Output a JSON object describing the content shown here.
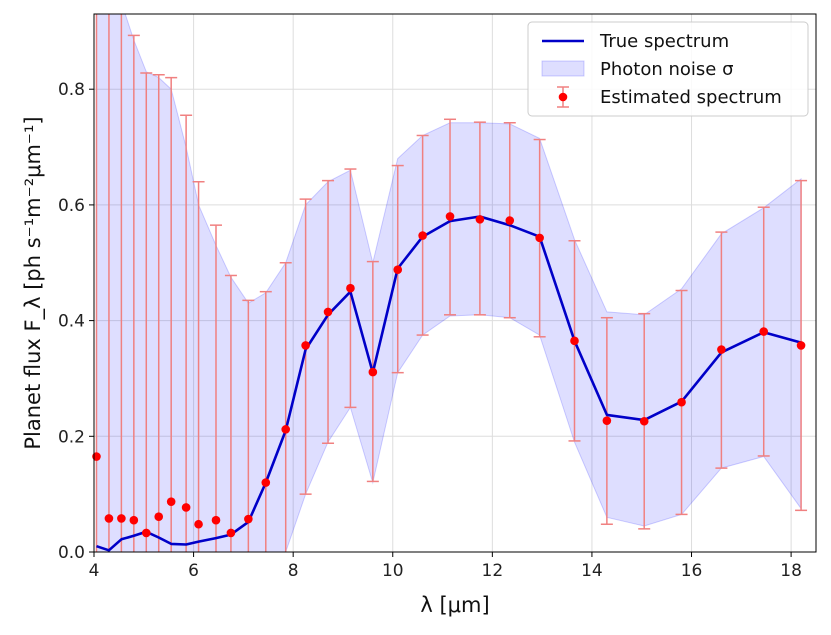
{
  "chart_data": {
    "type": "line",
    "title": "",
    "xlabel": "λ [μm]",
    "ylabel": "Planet flux F_λ [ph s⁻¹m⁻²μm⁻¹]",
    "xlim": [
      4.0,
      18.5
    ],
    "ylim": [
      0.0,
      0.93
    ],
    "x_ticks": [
      4,
      6,
      8,
      10,
      12,
      14,
      16,
      18
    ],
    "x_tick_labels": [
      "4",
      "6",
      "8",
      "10",
      "12",
      "14",
      "16",
      "18"
    ],
    "y_ticks": [
      0.0,
      0.2,
      0.4,
      0.6,
      0.8
    ],
    "y_tick_labels": [
      "0.0",
      "0.2",
      "0.4",
      "0.6",
      "0.8"
    ],
    "grid": true,
    "legend_position": "top-right",
    "colors": {
      "true_spectrum": "#0000c8",
      "noise_fill": "#0000ff",
      "estimated": "#ff0000",
      "errorbar": "#f08080"
    },
    "series": [
      {
        "name": "True spectrum",
        "kind": "line",
        "x": [
          4.05,
          4.3,
          4.55,
          4.8,
          5.05,
          5.3,
          5.55,
          5.85,
          6.1,
          6.45,
          6.75,
          7.1,
          7.45,
          7.85,
          8.25,
          8.7,
          9.15,
          9.6,
          10.1,
          10.6,
          11.15,
          11.75,
          12.35,
          12.95,
          13.65,
          14.3,
          15.05,
          15.8,
          16.6,
          17.45,
          18.2
        ],
        "y": [
          0.01,
          0.003,
          0.022,
          0.028,
          0.035,
          0.025,
          0.014,
          0.013,
          0.018,
          0.024,
          0.03,
          0.052,
          0.12,
          0.21,
          0.35,
          0.41,
          0.45,
          0.31,
          0.49,
          0.545,
          0.572,
          0.58,
          0.565,
          0.545,
          0.365,
          0.237,
          0.228,
          0.26,
          0.345,
          0.38,
          0.362
        ]
      },
      {
        "name": "Photon noise σ",
        "kind": "band",
        "x": [
          4.05,
          4.3,
          4.55,
          4.8,
          5.05,
          5.3,
          5.55,
          5.85,
          6.1,
          6.45,
          6.75,
          7.1,
          7.45,
          7.85,
          8.25,
          8.7,
          9.15,
          9.6,
          10.1,
          10.6,
          11.15,
          11.75,
          12.35,
          12.95,
          13.65,
          14.3,
          15.05,
          15.8,
          16.6,
          17.45,
          18.2
        ],
        "upper": [
          1.2,
          1.05,
          0.95,
          0.885,
          0.83,
          0.82,
          0.8,
          0.7,
          0.6,
          0.53,
          0.475,
          0.43,
          0.448,
          0.5,
          0.6,
          0.64,
          0.66,
          0.5,
          0.68,
          0.72,
          0.742,
          0.742,
          0.74,
          0.715,
          0.54,
          0.415,
          0.41,
          0.455,
          0.55,
          0.595,
          0.645
        ],
        "lower": [
          0.0,
          0.0,
          0.0,
          0.0,
          0.0,
          0.0,
          0.0,
          0.0,
          0.0,
          0.0,
          0.0,
          0.0,
          0.0,
          0.0,
          0.1,
          0.19,
          0.25,
          0.12,
          0.31,
          0.375,
          0.408,
          0.41,
          0.405,
          0.375,
          0.19,
          0.06,
          0.045,
          0.065,
          0.145,
          0.165,
          0.075
        ]
      },
      {
        "name": "Estimated spectrum",
        "kind": "errorbar",
        "x": [
          4.05,
          4.3,
          4.55,
          4.8,
          5.05,
          5.3,
          5.55,
          5.85,
          6.1,
          6.45,
          6.75,
          7.1,
          7.45,
          7.85,
          8.25,
          8.7,
          9.15,
          9.6,
          10.1,
          10.6,
          11.15,
          11.75,
          12.35,
          12.95,
          13.65,
          14.3,
          15.05,
          15.8,
          16.6,
          17.45,
          18.2
        ],
        "y": [
          0.165,
          0.058,
          0.058,
          0.055,
          0.033,
          0.061,
          0.087,
          0.077,
          0.048,
          0.055,
          0.033,
          0.057,
          0.12,
          0.212,
          0.357,
          0.415,
          0.456,
          0.311,
          0.488,
          0.547,
          0.58,
          0.575,
          0.573,
          0.543,
          0.365,
          0.227,
          0.226,
          0.259,
          0.35,
          0.381,
          0.357
        ],
        "yerr_upper": [
          1.2,
          1.05,
          0.95,
          0.893,
          0.828,
          0.825,
          0.82,
          0.755,
          0.64,
          0.565,
          0.478,
          0.435,
          0.45,
          0.5,
          0.61,
          0.642,
          0.662,
          0.502,
          0.668,
          0.72,
          0.748,
          0.743,
          0.742,
          0.713,
          0.538,
          0.405,
          0.412,
          0.452,
          0.553,
          0.596,
          0.642
        ],
        "yerr_lower": [
          0.0,
          0.0,
          0.0,
          0.0,
          0.0,
          0.0,
          0.0,
          0.0,
          0.0,
          0.0,
          0.0,
          0.0,
          0.0,
          0.0,
          0.1,
          0.188,
          0.25,
          0.122,
          0.31,
          0.375,
          0.41,
          0.41,
          0.405,
          0.372,
          0.192,
          0.048,
          0.04,
          0.065,
          0.145,
          0.166,
          0.072
        ]
      }
    ],
    "legend": [
      {
        "label": "True spectrum",
        "kind": "line"
      },
      {
        "label": "Photon noise σ",
        "kind": "band"
      },
      {
        "label": "Estimated spectrum",
        "kind": "errorbar"
      }
    ]
  }
}
